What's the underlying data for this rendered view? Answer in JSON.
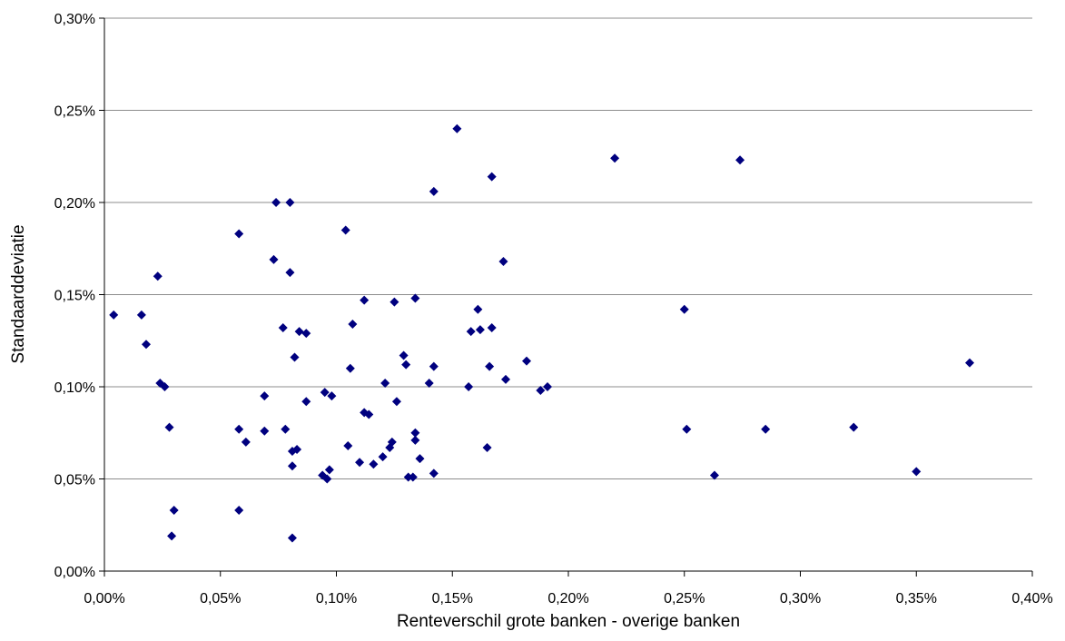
{
  "chart_data": {
    "type": "scatter",
    "title": "",
    "xlabel": "Renteverschil grote banken - overige banken",
    "ylabel": "Standaarddeviatie",
    "xlim": [
      0.0,
      0.4
    ],
    "ylim": [
      0.0,
      0.3
    ],
    "x_ticks": [
      "0,00%",
      "0,05%",
      "0,10%",
      "0,15%",
      "0,20%",
      "0,25%",
      "0,30%",
      "0,35%",
      "0,40%"
    ],
    "y_ticks": [
      "0,00%",
      "0,05%",
      "0,10%",
      "0,15%",
      "0,20%",
      "0,25%",
      "0,30%"
    ],
    "grid": "horizontal",
    "legend": "none",
    "marker_color": "#00007f",
    "points": [
      [
        0.004,
        0.139
      ],
      [
        0.016,
        0.139
      ],
      [
        0.018,
        0.123
      ],
      [
        0.023,
        0.16
      ],
      [
        0.024,
        0.102
      ],
      [
        0.026,
        0.1
      ],
      [
        0.028,
        0.078
      ],
      [
        0.03,
        0.033
      ],
      [
        0.029,
        0.019
      ],
      [
        0.058,
        0.183
      ],
      [
        0.058,
        0.077
      ],
      [
        0.058,
        0.033
      ],
      [
        0.061,
        0.07
      ],
      [
        0.069,
        0.095
      ],
      [
        0.069,
        0.076
      ],
      [
        0.073,
        0.169
      ],
      [
        0.074,
        0.2
      ],
      [
        0.077,
        0.132
      ],
      [
        0.078,
        0.077
      ],
      [
        0.08,
        0.2
      ],
      [
        0.08,
        0.162
      ],
      [
        0.081,
        0.065
      ],
      [
        0.081,
        0.057
      ],
      [
        0.081,
        0.018
      ],
      [
        0.082,
        0.116
      ],
      [
        0.083,
        0.066
      ],
      [
        0.084,
        0.13
      ],
      [
        0.087,
        0.129
      ],
      [
        0.087,
        0.092
      ],
      [
        0.094,
        0.052
      ],
      [
        0.095,
        0.097
      ],
      [
        0.096,
        0.05
      ],
      [
        0.097,
        0.055
      ],
      [
        0.098,
        0.095
      ],
      [
        0.104,
        0.185
      ],
      [
        0.105,
        0.068
      ],
      [
        0.106,
        0.11
      ],
      [
        0.107,
        0.134
      ],
      [
        0.11,
        0.059
      ],
      [
        0.112,
        0.147
      ],
      [
        0.112,
        0.086
      ],
      [
        0.114,
        0.085
      ],
      [
        0.116,
        0.058
      ],
      [
        0.12,
        0.062
      ],
      [
        0.121,
        0.102
      ],
      [
        0.123,
        0.067
      ],
      [
        0.124,
        0.07
      ],
      [
        0.125,
        0.146
      ],
      [
        0.126,
        0.092
      ],
      [
        0.129,
        0.117
      ],
      [
        0.13,
        0.112
      ],
      [
        0.131,
        0.051
      ],
      [
        0.133,
        0.051
      ],
      [
        0.134,
        0.148
      ],
      [
        0.134,
        0.075
      ],
      [
        0.134,
        0.071
      ],
      [
        0.136,
        0.061
      ],
      [
        0.14,
        0.102
      ],
      [
        0.142,
        0.206
      ],
      [
        0.142,
        0.111
      ],
      [
        0.142,
        0.053
      ],
      [
        0.152,
        0.24
      ],
      [
        0.157,
        0.1
      ],
      [
        0.158,
        0.13
      ],
      [
        0.161,
        0.142
      ],
      [
        0.162,
        0.131
      ],
      [
        0.165,
        0.067
      ],
      [
        0.166,
        0.111
      ],
      [
        0.167,
        0.214
      ],
      [
        0.167,
        0.132
      ],
      [
        0.172,
        0.168
      ],
      [
        0.173,
        0.104
      ],
      [
        0.182,
        0.114
      ],
      [
        0.188,
        0.098
      ],
      [
        0.191,
        0.1
      ],
      [
        0.22,
        0.224
      ],
      [
        0.25,
        0.142
      ],
      [
        0.251,
        0.077
      ],
      [
        0.263,
        0.052
      ],
      [
        0.274,
        0.223
      ],
      [
        0.285,
        0.077
      ],
      [
        0.323,
        0.078
      ],
      [
        0.35,
        0.054
      ],
      [
        0.373,
        0.113
      ]
    ]
  }
}
